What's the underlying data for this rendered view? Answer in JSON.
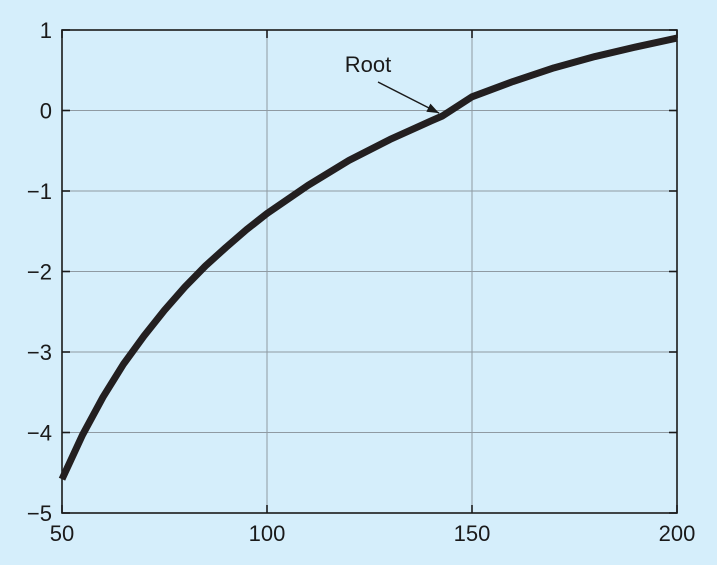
{
  "chart_data": {
    "type": "line",
    "title": "",
    "xlabel": "",
    "ylabel": "",
    "xlim": [
      50,
      200
    ],
    "ylim": [
      -5,
      1
    ],
    "x_ticks": [
      50,
      100,
      150,
      200
    ],
    "x_tick_labels": [
      "50",
      "100",
      "150",
      "200"
    ],
    "y_ticks": [
      1,
      0,
      -1,
      -2,
      -3,
      -4,
      -5
    ],
    "y_tick_labels": [
      "1",
      "0",
      "−1",
      "−2",
      "−3",
      "−4",
      "−5"
    ],
    "grid": true,
    "series": [
      {
        "color": "#231f20",
        "x": [
          50,
          55,
          60,
          65,
          70,
          75,
          80,
          85,
          90,
          95,
          100,
          110,
          120,
          130,
          140,
          142.7,
          150,
          160,
          170,
          180,
          190,
          200
        ],
        "y": [
          -4.58,
          -4.03,
          -3.56,
          -3.15,
          -2.8,
          -2.48,
          -2.19,
          -1.93,
          -1.7,
          -1.48,
          -1.28,
          -0.93,
          -0.62,
          -0.36,
          -0.13,
          -0.07,
          0.17,
          0.36,
          0.53,
          0.67,
          0.79,
          0.9
        ]
      }
    ],
    "annotations": [
      {
        "text": "Root",
        "points_to": {
          "x": 142.7,
          "y": -0.07
        }
      }
    ]
  }
}
